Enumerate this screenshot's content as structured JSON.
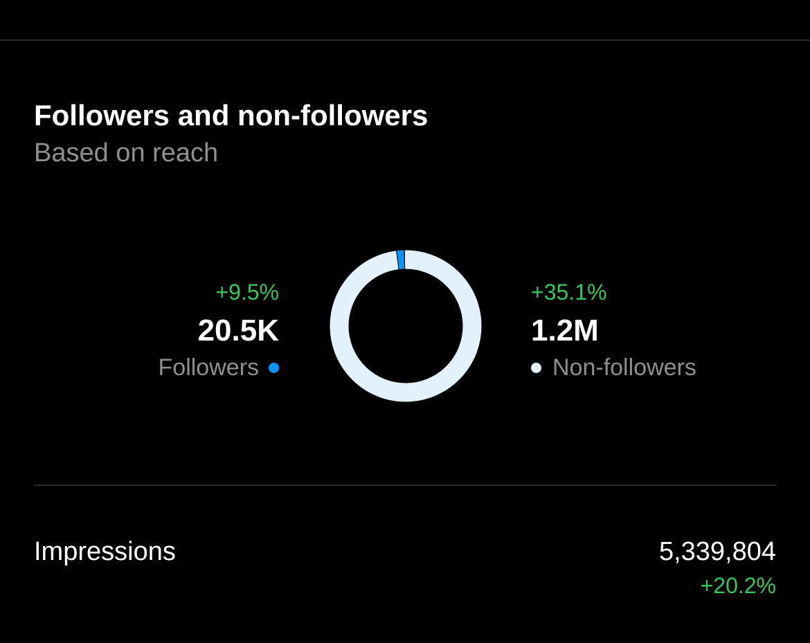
{
  "section": {
    "title": "Followers and non-followers",
    "subtitle": "Based on reach"
  },
  "followers": {
    "delta": "+9.5%",
    "value": "20.5K",
    "label": "Followers",
    "color": "#0a95f6"
  },
  "non_followers": {
    "delta": "+35.1%",
    "value": "1.2M",
    "label": "Non-followers",
    "color": "#e3f1fd"
  },
  "impressions": {
    "label": "Impressions",
    "value": "5,339,804",
    "delta": "+20.2%"
  },
  "colors": {
    "positive": "#34c759",
    "muted_text": "#8e8e93",
    "divider": "#2a2a2c",
    "background": "#000000"
  },
  "chart_data": {
    "type": "pie",
    "categories": [
      "Followers",
      "Non-followers"
    ],
    "values": [
      20500,
      1200000
    ],
    "colors": [
      "#0a95f6",
      "#e3f1fd"
    ]
  }
}
